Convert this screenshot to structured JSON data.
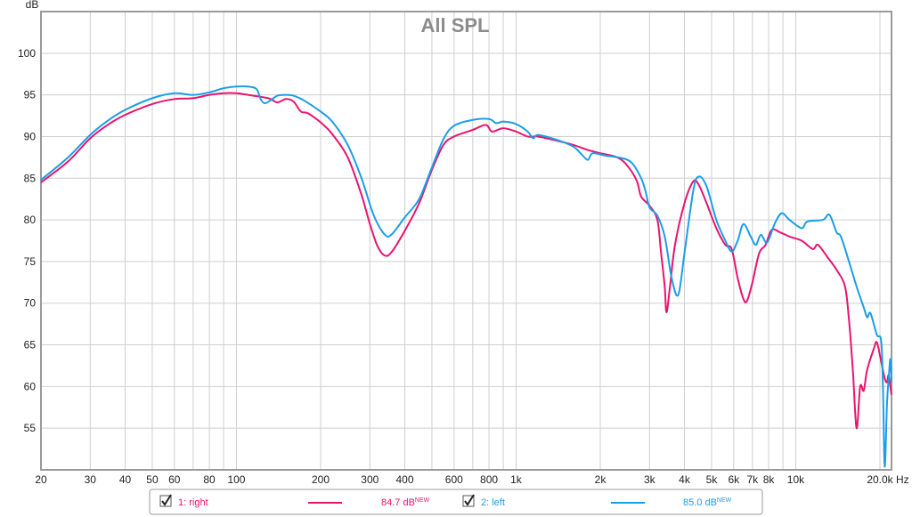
{
  "chart_data": {
    "type": "line",
    "title": "All SPL",
    "ylabel": "dB",
    "xlabel": "Hz",
    "xscale": "log",
    "xlim": [
      20,
      22000
    ],
    "ylim": [
      50,
      105
    ],
    "grid": true,
    "y_ticks": [
      55,
      60,
      65,
      70,
      75,
      80,
      85,
      90,
      95,
      100
    ],
    "x_ticks": [
      {
        "value": 20,
        "label": "20"
      },
      {
        "value": 30,
        "label": "30"
      },
      {
        "value": 40,
        "label": "40"
      },
      {
        "value": 50,
        "label": "50"
      },
      {
        "value": 60,
        "label": "60"
      },
      {
        "value": 80,
        "label": "80"
      },
      {
        "value": 100,
        "label": "100"
      },
      {
        "value": 200,
        "label": "200"
      },
      {
        "value": 300,
        "label": "300"
      },
      {
        "value": 400,
        "label": "400"
      },
      {
        "value": 600,
        "label": "600"
      },
      {
        "value": 800,
        "label": "800"
      },
      {
        "value": 1000,
        "label": "1k"
      },
      {
        "value": 2000,
        "label": "2k"
      },
      {
        "value": 3000,
        "label": "3k"
      },
      {
        "value": 4000,
        "label": "4k"
      },
      {
        "value": 5000,
        "label": "5k"
      },
      {
        "value": 6000,
        "label": "6k"
      },
      {
        "value": 7000,
        "label": "7k"
      },
      {
        "value": 8000,
        "label": "8k"
      },
      {
        "value": 10000,
        "label": "10k"
      },
      {
        "value": 20000,
        "label": "20.0k"
      }
    ],
    "series": [
      {
        "name": "1: right",
        "color": "#e8146e",
        "level": "84.7 dB",
        "level_badge": "NEW",
        "checked": true,
        "points": [
          [
            20,
            84.5
          ],
          [
            25,
            87
          ],
          [
            30,
            89.8
          ],
          [
            35,
            91.5
          ],
          [
            40,
            92.6
          ],
          [
            50,
            93.9
          ],
          [
            60,
            94.5
          ],
          [
            70,
            94.6
          ],
          [
            80,
            95
          ],
          [
            90,
            95.2
          ],
          [
            100,
            95.2
          ],
          [
            110,
            95
          ],
          [
            130,
            94.6
          ],
          [
            140,
            94.1
          ],
          [
            150,
            94.5
          ],
          [
            160,
            94.2
          ],
          [
            170,
            93
          ],
          [
            180,
            92.8
          ],
          [
            200,
            91.7
          ],
          [
            220,
            90.3
          ],
          [
            250,
            87.5
          ],
          [
            280,
            83
          ],
          [
            300,
            79.5
          ],
          [
            320,
            76.8
          ],
          [
            340,
            75.7
          ],
          [
            360,
            76.2
          ],
          [
            400,
            78.7
          ],
          [
            450,
            82
          ],
          [
            500,
            86
          ],
          [
            550,
            89
          ],
          [
            600,
            90
          ],
          [
            700,
            90.8
          ],
          [
            780,
            91.4
          ],
          [
            820,
            90.6
          ],
          [
            900,
            91
          ],
          [
            1000,
            90.6
          ],
          [
            1100,
            90
          ],
          [
            1200,
            90
          ],
          [
            1400,
            89.5
          ],
          [
            1600,
            89
          ],
          [
            1800,
            88.4
          ],
          [
            2000,
            88
          ],
          [
            2300,
            87.5
          ],
          [
            2500,
            86.5
          ],
          [
            2700,
            84.7
          ],
          [
            2800,
            82.8
          ],
          [
            3000,
            81.7
          ],
          [
            3200,
            80
          ],
          [
            3300,
            76
          ],
          [
            3400,
            72
          ],
          [
            3450,
            68.9
          ],
          [
            3550,
            72
          ],
          [
            3700,
            77
          ],
          [
            4000,
            82
          ],
          [
            4300,
            84.6
          ],
          [
            4500,
            84.2
          ],
          [
            4800,
            82
          ],
          [
            5200,
            79
          ],
          [
            5600,
            77
          ],
          [
            5900,
            76.5
          ],
          [
            6200,
            73
          ],
          [
            6500,
            70.5
          ],
          [
            6700,
            70.3
          ],
          [
            7000,
            72.5
          ],
          [
            7400,
            76
          ],
          [
            7800,
            77
          ],
          [
            8200,
            78.8
          ],
          [
            8800,
            78.5
          ],
          [
            9500,
            78
          ],
          [
            10500,
            77.5
          ],
          [
            11500,
            76.5
          ],
          [
            12000,
            77
          ],
          [
            13000,
            75.5
          ],
          [
            14000,
            74
          ],
          [
            15000,
            72
          ],
          [
            15500,
            68
          ],
          [
            16000,
            62
          ],
          [
            16500,
            55
          ],
          [
            17000,
            60
          ],
          [
            17500,
            59.5
          ],
          [
            18000,
            62
          ],
          [
            19000,
            64.5
          ],
          [
            19500,
            65.3
          ],
          [
            20200,
            63
          ],
          [
            20800,
            61
          ],
          [
            21200,
            60.5
          ],
          [
            21500,
            61.3
          ],
          [
            22000,
            59
          ]
        ]
      },
      {
        "name": "2: left",
        "color": "#1a9ee8",
        "level": "85.0 dB",
        "level_badge": "NEW",
        "checked": true,
        "points": [
          [
            20,
            84.8
          ],
          [
            25,
            87.5
          ],
          [
            30,
            90.2
          ],
          [
            35,
            92
          ],
          [
            40,
            93.2
          ],
          [
            50,
            94.6
          ],
          [
            60,
            95.2
          ],
          [
            70,
            95
          ],
          [
            80,
            95.3
          ],
          [
            90,
            95.8
          ],
          [
            100,
            96
          ],
          [
            110,
            96
          ],
          [
            118,
            95.7
          ],
          [
            122,
            94.5
          ],
          [
            126,
            94
          ],
          [
            132,
            94.3
          ],
          [
            140,
            94.9
          ],
          [
            150,
            95
          ],
          [
            160,
            94.9
          ],
          [
            175,
            94.3
          ],
          [
            200,
            93
          ],
          [
            220,
            91.8
          ],
          [
            250,
            89
          ],
          [
            280,
            85
          ],
          [
            310,
            80.5
          ],
          [
            340,
            78.2
          ],
          [
            360,
            78.3
          ],
          [
            400,
            80.3
          ],
          [
            450,
            82.5
          ],
          [
            500,
            86.3
          ],
          [
            550,
            89.7
          ],
          [
            600,
            91.3
          ],
          [
            700,
            92
          ],
          [
            800,
            92.1
          ],
          [
            850,
            91.6
          ],
          [
            900,
            91.8
          ],
          [
            1000,
            91.5
          ],
          [
            1100,
            90.6
          ],
          [
            1150,
            89.8
          ],
          [
            1200,
            90.2
          ],
          [
            1400,
            89.6
          ],
          [
            1600,
            88.8
          ],
          [
            1700,
            88
          ],
          [
            1800,
            87.2
          ],
          [
            1850,
            87.8
          ],
          [
            1900,
            88
          ],
          [
            2100,
            87.7
          ],
          [
            2400,
            87.4
          ],
          [
            2600,
            86.8
          ],
          [
            2800,
            85
          ],
          [
            2900,
            83.5
          ],
          [
            3000,
            81.5
          ],
          [
            3200,
            80.5
          ],
          [
            3400,
            78
          ],
          [
            3600,
            73
          ],
          [
            3800,
            71
          ],
          [
            4000,
            76
          ],
          [
            4300,
            83.5
          ],
          [
            4500,
            85.2
          ],
          [
            4800,
            84
          ],
          [
            5200,
            80
          ],
          [
            5600,
            77.5
          ],
          [
            5900,
            76.2
          ],
          [
            6200,
            77.5
          ],
          [
            6500,
            79.5
          ],
          [
            6900,
            78
          ],
          [
            7200,
            77
          ],
          [
            7500,
            78.2
          ],
          [
            7900,
            77.3
          ],
          [
            8400,
            79.5
          ],
          [
            8900,
            80.8
          ],
          [
            9500,
            80
          ],
          [
            10500,
            79
          ],
          [
            11000,
            79.8
          ],
          [
            12500,
            80
          ],
          [
            13200,
            80.6
          ],
          [
            14000,
            78.5
          ],
          [
            14500,
            78
          ],
          [
            15500,
            75
          ],
          [
            16500,
            72
          ],
          [
            17500,
            69.5
          ],
          [
            18000,
            68.3
          ],
          [
            18500,
            68.8
          ],
          [
            19500,
            66.2
          ],
          [
            20200,
            65.5
          ],
          [
            20500,
            60
          ],
          [
            20800,
            50.4
          ],
          [
            21200,
            58
          ],
          [
            21500,
            61
          ],
          [
            21800,
            63.3
          ],
          [
            22000,
            60.5
          ]
        ]
      }
    ]
  }
}
